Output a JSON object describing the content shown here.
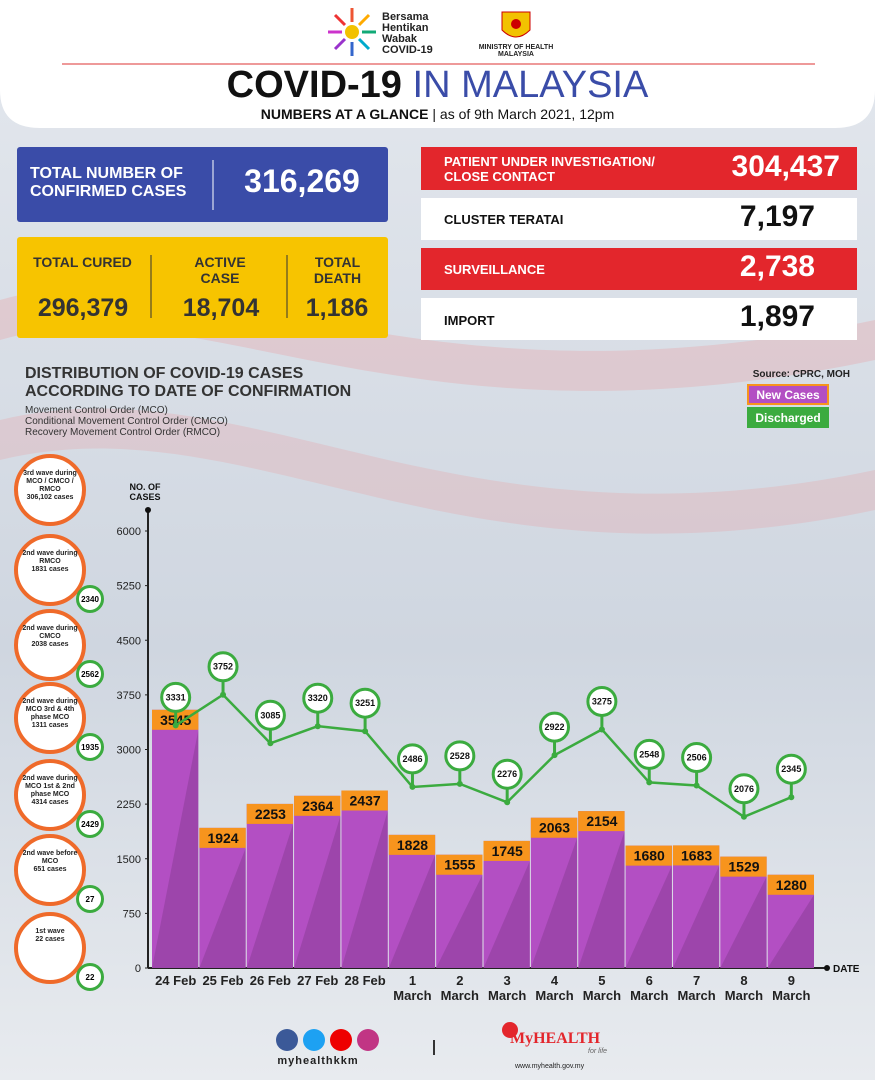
{
  "header": {
    "logo_lines": [
      "Bersama",
      "Hentikan",
      "Wabak",
      "COVID-19"
    ],
    "ministry": "MINISTRY OF HEALTH MALAYSIA",
    "title_bold": "COVID-19",
    "title_rest": "IN MALAYSIA",
    "subtitle_bold": "NUMBERS AT A GLANCE",
    "subtitle_date": "as of 9th March 2021, 12pm"
  },
  "stats": {
    "confirmed": {
      "label": "TOTAL NUMBER OF CONFIRMED CASES",
      "value": "316,269"
    },
    "cured": {
      "label": "TOTAL CURED",
      "value": "296,379"
    },
    "active": {
      "label": "ACTIVE CASE",
      "value": "18,704"
    },
    "death": {
      "label": "TOTAL DEATH",
      "value": "1,186"
    },
    "pui": {
      "label": "PATIENT UNDER INVESTIGATION/ CLOSE CONTACT",
      "value": "304,437"
    },
    "teratai": {
      "label": "CLUSTER TERATAI",
      "value": "7,197"
    },
    "surveillance": {
      "label": "SURVEILLANCE",
      "value": "2,738"
    },
    "import": {
      "label": "IMPORT",
      "value": "1,897"
    }
  },
  "waves": [
    {
      "label": "3rd wave during MCO / CMCO / RMCO",
      "cases": "306,102 cases"
    },
    {
      "label": "2nd wave during RMCO",
      "cases": "1831 cases",
      "discharged": "2340"
    },
    {
      "label": "2nd wave during CMCO",
      "cases": "2038 cases",
      "discharged": "2562"
    },
    {
      "label": "2nd wave during MCO 3rd & 4th phase MCO",
      "cases": "1311 cases",
      "discharged": "1935"
    },
    {
      "label": "2nd wave during MCO 1st & 2nd phase MCO",
      "cases": "4314 cases",
      "discharged": "2429"
    },
    {
      "label": "2nd wave before MCO",
      "cases": "651 cases",
      "discharged": "27"
    },
    {
      "label": "1st wave",
      "cases": "22 cases",
      "discharged": "22"
    }
  ],
  "chart_data": {
    "type": "bar",
    "title": "DISTRIBUTION OF COVID-19 CASES ACCORDING TO DATE OF CONFIRMATION",
    "notes": [
      "Movement Control Order (MCO)",
      "Conditional Movement Control Order (CMCO)",
      "Recovery Movement Control Order (RMCO)"
    ],
    "source": "Source: CPRC, MOH",
    "y_label": "NO. OF CASES",
    "x_label": "DATE",
    "categories": [
      "24 Feb",
      "25 Feb",
      "26 Feb",
      "27 Feb",
      "28 Feb",
      "1 March",
      "2 March",
      "3 March",
      "4 March",
      "5 March",
      "6 March",
      "7 March",
      "8 March",
      "9 March"
    ],
    "series": [
      {
        "name": "New Cases",
        "type": "bar",
        "color": "#b34fc3",
        "values": [
          3545,
          1924,
          2253,
          2364,
          2437,
          1828,
          1555,
          1745,
          2063,
          2154,
          1680,
          1683,
          1529,
          1280
        ]
      },
      {
        "name": "Discharged",
        "type": "line",
        "color": "#3bab3f",
        "values": [
          3331,
          3752,
          3085,
          3320,
          3251,
          2486,
          2528,
          2276,
          2922,
          3275,
          2548,
          2506,
          2076,
          2345
        ]
      }
    ],
    "ylim": [
      0,
      6000
    ],
    "yticks": [
      0,
      750,
      1500,
      2250,
      3000,
      3750,
      4500,
      5250,
      6000
    ]
  },
  "footer": {
    "handle": "myhealthkkm",
    "brand": "MyHEALTH",
    "tagline": "for life",
    "url": "www.myhealth.gov.my"
  }
}
